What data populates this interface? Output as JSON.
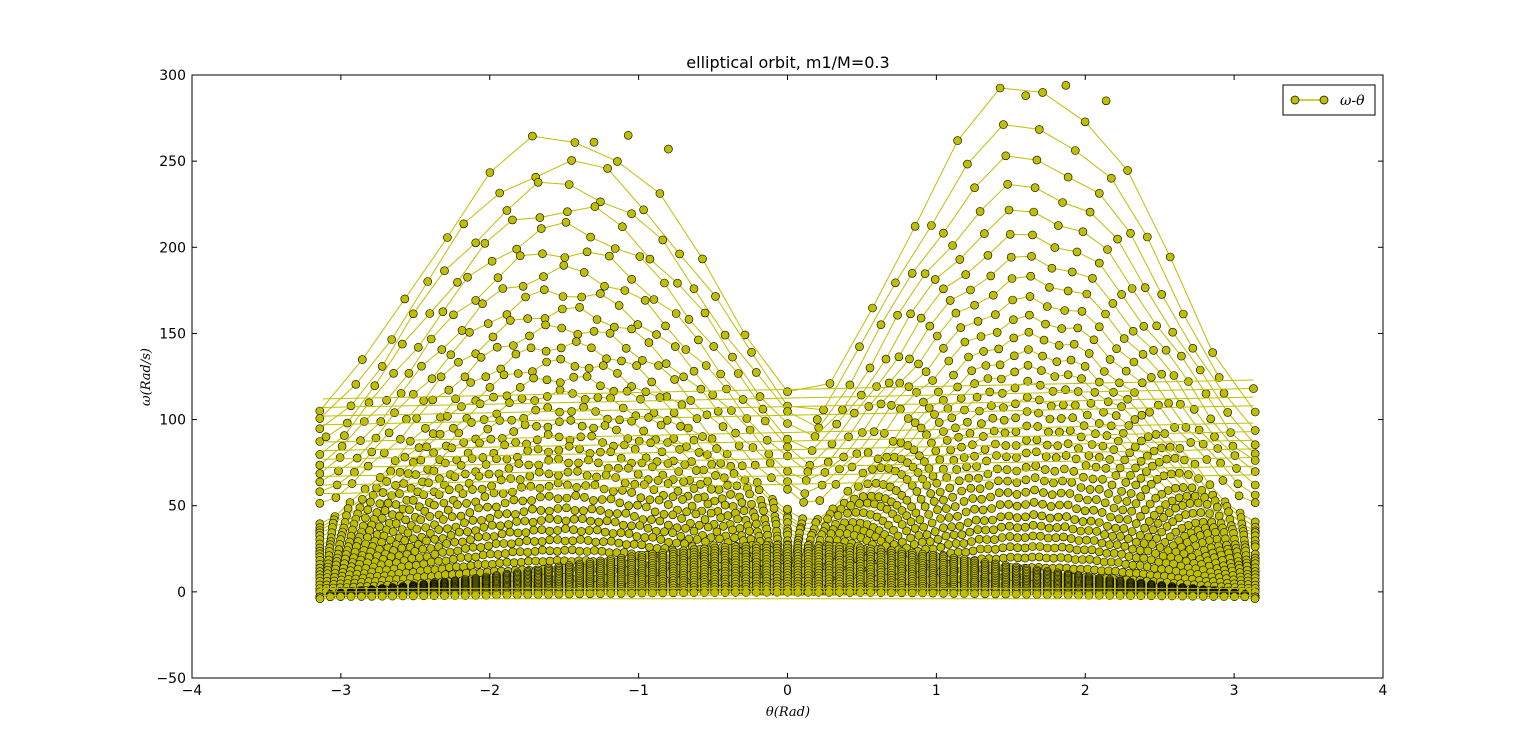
{
  "chart_data": {
    "type": "line",
    "title": "elliptical orbit, m1/M=0.3",
    "xlabel": "θ(Rad)",
    "ylabel": "ω(Rad/s)",
    "xlim": [
      -4,
      4
    ],
    "ylim": [
      -50,
      300
    ],
    "xticks": [
      -4,
      -3,
      -2,
      -1,
      0,
      1,
      2,
      3,
      4
    ],
    "yticks": [
      -50,
      0,
      50,
      100,
      150,
      200,
      250,
      300
    ],
    "xtick_labels": [
      "−4",
      "−3",
      "−2",
      "−1",
      "0",
      "1",
      "2",
      "3",
      "4"
    ],
    "ytick_labels": [
      "−50",
      "0",
      "50",
      "100",
      "150",
      "200",
      "250",
      "300"
    ],
    "grid": false,
    "legend": {
      "position": "top-right",
      "entries": [
        "ω-θ"
      ]
    },
    "colors": {
      "line": "#bfbf00",
      "marker_face": "#bfbf00",
      "marker_edge": "#000000"
    },
    "series": [
      {
        "name": "ω-θ",
        "description_peaks": "family of nested arches over θ∈[-π, π]",
        "arch_left_peaks": [
          265,
          249,
          236,
          223,
          211,
          198,
          186,
          174,
          163,
          153,
          143,
          133,
          124,
          115,
          106,
          98,
          90,
          83,
          76,
          69,
          62,
          55,
          48,
          42,
          36,
          30,
          24,
          18,
          13,
          8,
          4
        ],
        "arch_right_peaks": [
          294,
          271,
          252,
          235,
          220,
          206,
          193,
          181,
          169,
          158,
          148,
          138,
          129,
          120,
          111,
          103,
          95,
          87,
          80,
          72,
          65,
          58,
          51,
          44,
          38,
          32,
          26,
          20,
          14,
          9,
          4
        ],
        "sample_points": [
          {
            "x": -1.07,
            "y": 265
          },
          {
            "x": -0.8,
            "y": 257
          },
          {
            "x": -1.3,
            "y": 261
          },
          {
            "x": 1.87,
            "y": 294
          },
          {
            "x": 2.14,
            "y": 285
          },
          {
            "x": 1.6,
            "y": 288
          },
          {
            "x": -3.1,
            "y": 90
          },
          {
            "x": 3.13,
            "y": 118
          },
          {
            "x": 0.2,
            "y": 100
          },
          {
            "x": 0.0,
            "y": 48
          },
          {
            "x": -3.14,
            "y": -4
          },
          {
            "x": 3.14,
            "y": -4
          }
        ]
      }
    ]
  }
}
